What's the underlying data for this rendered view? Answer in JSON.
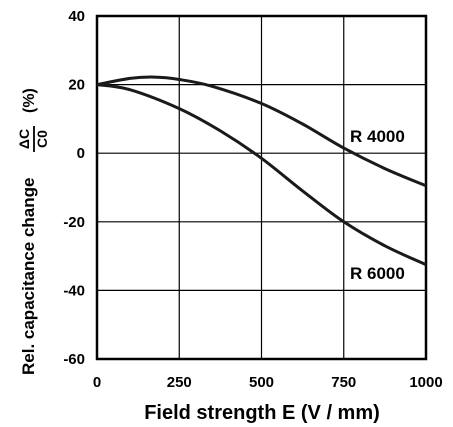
{
  "chart_data": {
    "type": "line",
    "xlabel": "Field strength E (V / mm)",
    "ylabel": "Rel. capacitance change",
    "ylabel_fraction": {
      "numerator": "ΔC",
      "denominator": "C0"
    },
    "ylabel_unit": "(%)",
    "xlim": [
      0,
      1000
    ],
    "ylim": [
      -60,
      40
    ],
    "xticks": [
      "0",
      "250",
      "500",
      "750",
      "1000"
    ],
    "yticks": [
      "40",
      "20",
      "0",
      "-20",
      "-40",
      "-60"
    ],
    "grid": true,
    "series": [
      {
        "name": "R 4000",
        "x": [
          0,
          100,
          175,
          250,
          350,
          500,
          625,
          750,
          875,
          1000
        ],
        "y": [
          20,
          21.8,
          22.2,
          21.5,
          19.5,
          14.5,
          8.5,
          1.5,
          -4.5,
          -9.5
        ]
      },
      {
        "name": "R 6000",
        "x": [
          0,
          100,
          250,
          375,
          500,
          625,
          750,
          875,
          1000
        ],
        "y": [
          20,
          18.5,
          13,
          6.5,
          -1.5,
          -11,
          -20,
          -27,
          -32.5
        ]
      }
    ]
  }
}
